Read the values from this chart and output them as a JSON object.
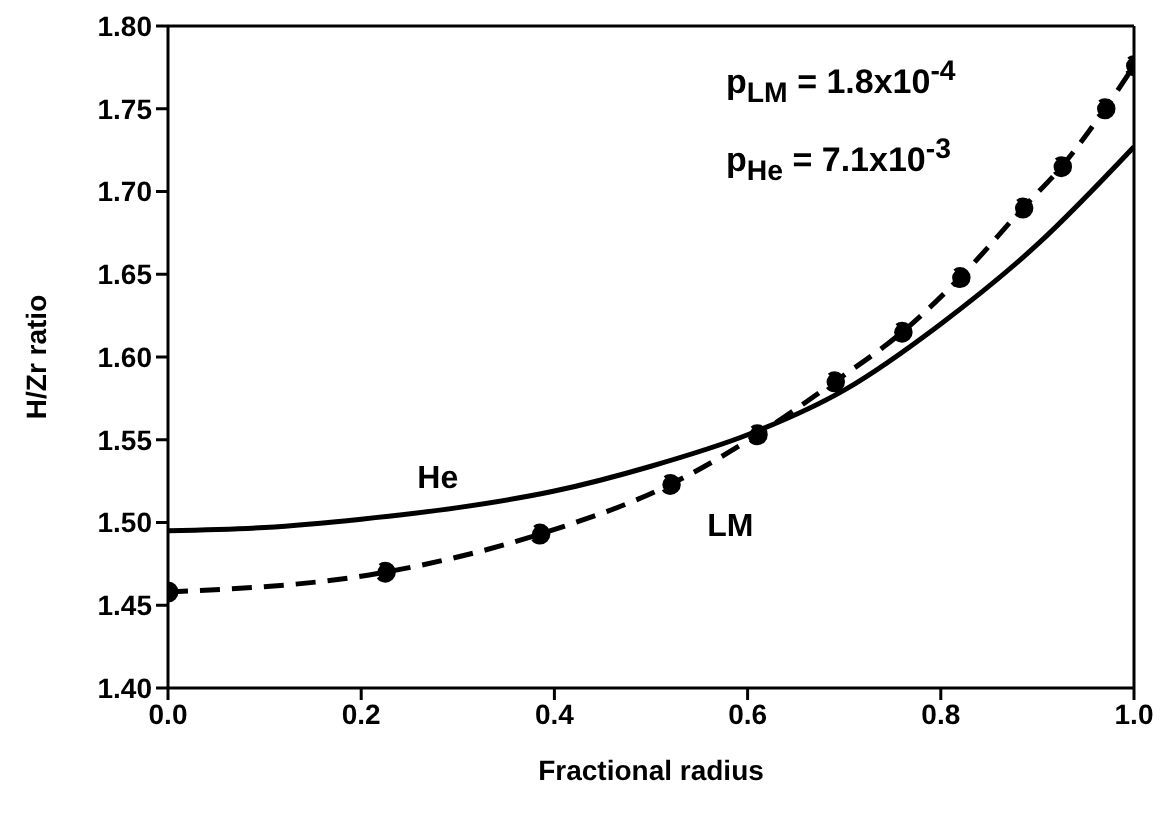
{
  "chart_data": {
    "type": "line",
    "xlabel": "Fractional radius",
    "ylabel": "H/Zr ratio",
    "xlim": [
      0,
      1
    ],
    "xticks": [
      {
        "value": 0,
        "label": "0.0"
      },
      0.2,
      0.4,
      0.6,
      0.8,
      {
        "value": 1,
        "label": "1.0"
      }
    ],
    "ylim": [
      1.4,
      1.8
    ],
    "yticks": [
      {
        "value": 1.4,
        "label": "1.40"
      },
      1.45,
      {
        "value": 1.5,
        "label": "1.50"
      },
      1.55,
      {
        "value": 1.6,
        "label": "1.60"
      },
      1.65,
      {
        "value": 1.7,
        "label": "1.70"
      },
      1.75,
      {
        "value": 1.8,
        "label": "1.80"
      }
    ],
    "series": [
      {
        "name": "He",
        "color": "#000000",
        "line_style": "solid",
        "marker": "none",
        "x": [
          0,
          0.1,
          0.2,
          0.3,
          0.4,
          0.5,
          0.6,
          0.7,
          0.8,
          0.9,
          1.0
        ],
        "values": [
          1.495,
          1.497,
          1.502,
          1.509,
          1.519,
          1.534,
          1.553,
          1.58,
          1.62,
          1.668,
          1.727
        ]
      },
      {
        "name": "LM",
        "color": "#000000",
        "line_style": "dashed",
        "marker": "circle",
        "x": [
          0,
          0.225,
          0.385,
          0.52,
          0.61,
          0.69,
          0.76,
          0.82,
          0.885,
          0.925,
          0.97,
          1.0
        ],
        "values": [
          1.458,
          1.47,
          1.493,
          1.523,
          1.553,
          1.585,
          1.615,
          1.648,
          1.69,
          1.715,
          1.75,
          1.776
        ]
      }
    ],
    "annotations": [
      "p$_{LM}$ = 1.8x10$^{-4}$",
      "p$_{He}$ = 7.1x10$^{-3}$"
    ]
  }
}
